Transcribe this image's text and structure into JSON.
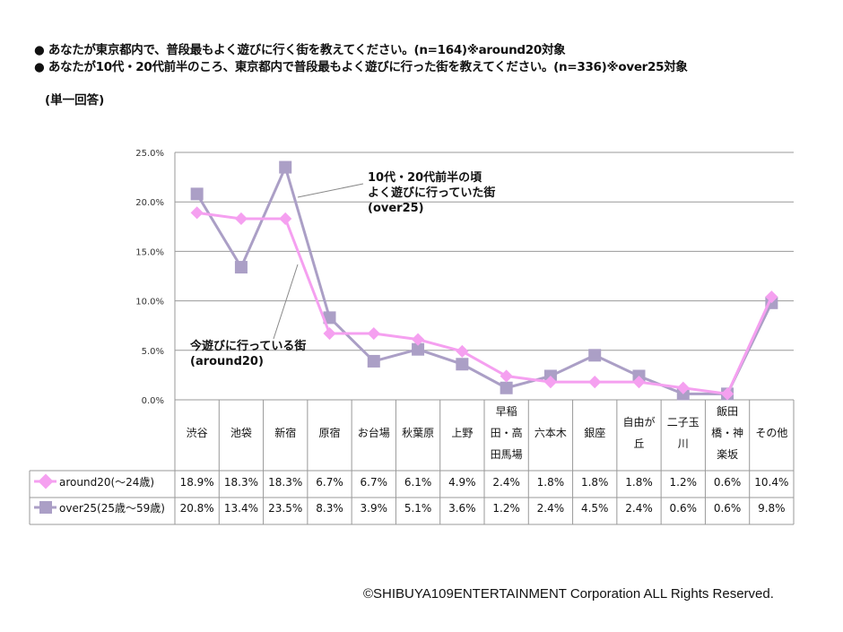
{
  "header": {
    "question1": "● あなたが東京都内で、普段最もよく遊びに行く街を教えてください。(n=164)※around20対象",
    "question2": "● あなたが10代・20代前半のころ、東京都内で普段最もよく遊びに行った街を教えてください。(n=336)※over25対象",
    "note": "(単一回答)"
  },
  "annotations": {
    "over25": [
      "10代・20代前半の頃",
      "よく遊びに行っていた街",
      "(over25)"
    ],
    "around20": [
      "今遊びに行っている街",
      "(around20)"
    ]
  },
  "copyright": "©SHIBUYA109ENTERTAINMENT Corporation  ALL Rights Reserved.",
  "chart_data": {
    "type": "line",
    "categories": [
      "渋谷",
      "池袋",
      "新宿",
      "原宿",
      "お台場",
      "秋葉原",
      "上野",
      "早稲田・高田馬場",
      "六本木",
      "銀座",
      "自由が丘",
      "二子玉川",
      "飯田橋・神楽坂",
      "その他"
    ],
    "category_labels": [
      [
        "渋谷"
      ],
      [
        "池袋"
      ],
      [
        "新宿"
      ],
      [
        "原宿"
      ],
      [
        "お台場"
      ],
      [
        "秋葉原"
      ],
      [
        "上野"
      ],
      [
        "早稲",
        "田・高",
        "田馬場"
      ],
      [
        "六本木"
      ],
      [
        "銀座"
      ],
      [
        "自由が",
        "丘"
      ],
      [
        "二子玉",
        "川"
      ],
      [
        "飯田",
        "橋・神",
        "楽坂"
      ],
      [
        "その他"
      ]
    ],
    "yticks": [
      "0.0%",
      "5.0%",
      "10.0%",
      "15.0%",
      "20.0%",
      "25.0%"
    ],
    "ylim": [
      0,
      25
    ],
    "grid": true,
    "series": [
      {
        "name": "around20(～24歳)",
        "color": "#f5a0f0",
        "marker": "diamond",
        "values": [
          18.9,
          18.3,
          18.3,
          6.7,
          6.7,
          6.1,
          4.9,
          2.4,
          1.8,
          1.8,
          1.8,
          1.2,
          0.6,
          10.4
        ],
        "labels": [
          "18.9%",
          "18.3%",
          "18.3%",
          "6.7%",
          "6.7%",
          "6.1%",
          "4.9%",
          "2.4%",
          "1.8%",
          "1.8%",
          "1.8%",
          "1.2%",
          "0.6%",
          "10.4%"
        ]
      },
      {
        "name": "over25(25歳～59歳)",
        "color": "#ab9fc6",
        "marker": "square",
        "values": [
          20.8,
          13.4,
          23.5,
          8.3,
          3.9,
          5.1,
          3.6,
          1.2,
          2.4,
          4.5,
          2.4,
          0.6,
          0.6,
          9.8
        ],
        "labels": [
          "20.8%",
          "13.4%",
          "23.5%",
          "8.3%",
          "3.9%",
          "5.1%",
          "3.6%",
          "1.2%",
          "2.4%",
          "4.5%",
          "2.4%",
          "0.6%",
          "0.6%",
          "9.8%"
        ]
      }
    ]
  }
}
